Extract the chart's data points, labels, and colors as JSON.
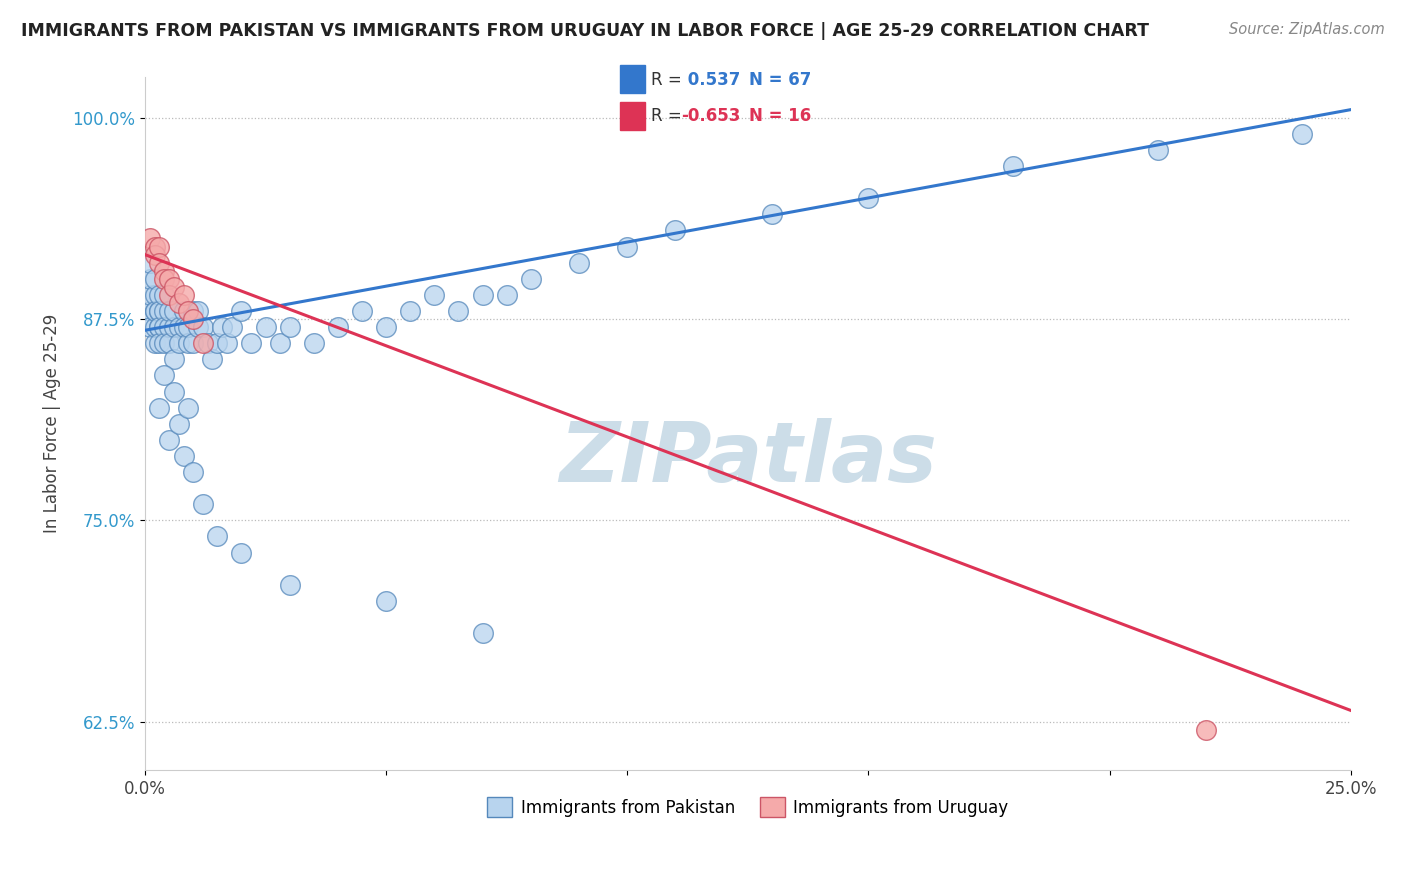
{
  "title": "IMMIGRANTS FROM PAKISTAN VS IMMIGRANTS FROM URUGUAY IN LABOR FORCE | AGE 25-29 CORRELATION CHART",
  "source": "Source: ZipAtlas.com",
  "ylabel": "In Labor Force | Age 25-29",
  "xlim": [
    0.0,
    0.25
  ],
  "ylim": [
    0.595,
    1.025
  ],
  "yticks": [
    0.625,
    0.75,
    0.875,
    1.0
  ],
  "ytick_labels": [
    "62.5%",
    "75.0%",
    "87.5%",
    "100.0%"
  ],
  "xticks": [
    0.0,
    0.05,
    0.1,
    0.15,
    0.2,
    0.25
  ],
  "xtick_labels": [
    "0.0%",
    "",
    "",
    "",
    "",
    "25.0%"
  ],
  "pakistan_color": "#b8d4ee",
  "pakistan_edge": "#5588bb",
  "uruguay_color": "#f5aaaa",
  "uruguay_edge": "#cc5566",
  "blue_line_color": "#3377cc",
  "pink_line_color": "#dd3355",
  "pakistan_R": 0.537,
  "pakistan_N": 67,
  "uruguay_R": -0.653,
  "uruguay_N": 16,
  "legend_box_color": "#d0e8f8",
  "legend_border_color": "#aabbcc",
  "watermark_color": "#ccdde8",
  "pakistan_x": [
    0.001,
    0.001,
    0.001,
    0.001,
    0.001,
    0.002,
    0.002,
    0.002,
    0.002,
    0.002,
    0.002,
    0.003,
    0.003,
    0.003,
    0.003,
    0.003,
    0.003,
    0.004,
    0.004,
    0.004,
    0.004,
    0.005,
    0.005,
    0.005,
    0.006,
    0.006,
    0.006,
    0.007,
    0.007,
    0.008,
    0.008,
    0.009,
    0.009,
    0.01,
    0.01,
    0.011,
    0.011,
    0.012,
    0.013,
    0.014,
    0.015,
    0.016,
    0.017,
    0.018,
    0.02,
    0.022,
    0.025,
    0.028,
    0.03,
    0.035,
    0.04,
    0.045,
    0.05,
    0.055,
    0.06,
    0.065,
    0.07,
    0.075,
    0.08,
    0.09,
    0.1,
    0.11,
    0.13,
    0.15,
    0.18,
    0.21,
    0.24
  ],
  "pakistan_y": [
    0.88,
    0.89,
    0.9,
    0.91,
    0.87,
    0.88,
    0.89,
    0.9,
    0.86,
    0.87,
    0.88,
    0.87,
    0.88,
    0.89,
    0.88,
    0.87,
    0.86,
    0.88,
    0.87,
    0.89,
    0.86,
    0.87,
    0.88,
    0.86,
    0.87,
    0.88,
    0.85,
    0.87,
    0.86,
    0.88,
    0.87,
    0.86,
    0.87,
    0.88,
    0.86,
    0.87,
    0.88,
    0.87,
    0.86,
    0.85,
    0.86,
    0.87,
    0.86,
    0.87,
    0.88,
    0.86,
    0.87,
    0.86,
    0.87,
    0.86,
    0.87,
    0.88,
    0.87,
    0.88,
    0.89,
    0.88,
    0.89,
    0.89,
    0.9,
    0.91,
    0.92,
    0.93,
    0.94,
    0.95,
    0.97,
    0.98,
    0.99
  ],
  "pakistan_low_x": [
    0.003,
    0.004,
    0.005,
    0.006,
    0.007,
    0.008,
    0.009,
    0.01,
    0.012,
    0.015,
    0.02,
    0.03,
    0.05,
    0.07
  ],
  "pakistan_low_y": [
    0.82,
    0.84,
    0.8,
    0.83,
    0.81,
    0.79,
    0.82,
    0.78,
    0.76,
    0.74,
    0.73,
    0.71,
    0.7,
    0.68
  ],
  "uruguay_x": [
    0.001,
    0.002,
    0.002,
    0.003,
    0.003,
    0.004,
    0.004,
    0.005,
    0.005,
    0.006,
    0.007,
    0.008,
    0.009,
    0.01,
    0.012,
    0.22
  ],
  "uruguay_y": [
    0.925,
    0.92,
    0.915,
    0.92,
    0.91,
    0.905,
    0.9,
    0.9,
    0.89,
    0.895,
    0.885,
    0.89,
    0.88,
    0.875,
    0.86,
    0.62
  ],
  "blue_line_x0": 0.0,
  "blue_line_y0": 0.868,
  "blue_line_x1": 0.25,
  "blue_line_y1": 1.005,
  "pink_line_x0": 0.0,
  "pink_line_y0": 0.915,
  "pink_line_x1": 0.25,
  "pink_line_y1": 0.632
}
